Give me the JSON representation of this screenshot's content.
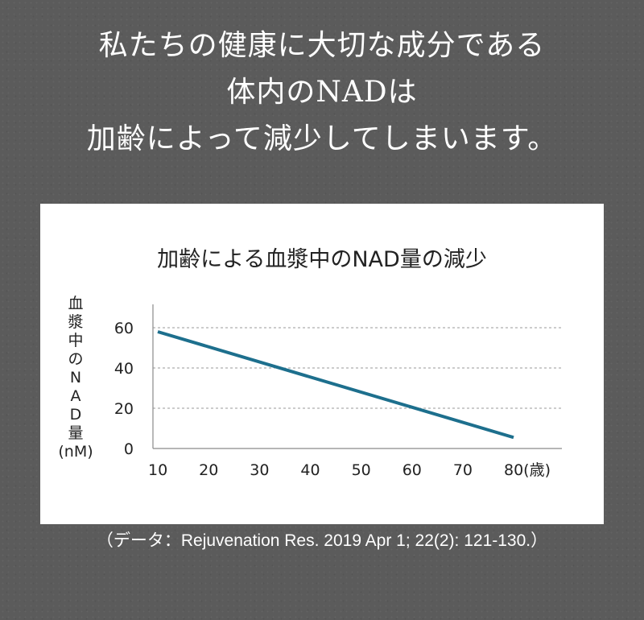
{
  "headline": {
    "lines": [
      "私たちの健康に大切な成分である",
      "体内のNADは",
      "加齢によって減少してしまいます。"
    ]
  },
  "colors": {
    "background": "#5b5b5b",
    "card": "#ffffff",
    "line": "#1d6f8d",
    "grid": "#9a9a9a",
    "text": "#222222"
  },
  "chart_data": {
    "type": "line",
    "title": "加齢による血漿中のNAD量の減少",
    "ylabel_chars": [
      "血",
      "漿",
      "中",
      "の",
      "N",
      "A",
      "D",
      "量",
      "(nM)"
    ],
    "xlabel": "",
    "x_ticks": [
      "10",
      "20",
      "30",
      "40",
      "50",
      "60",
      "70",
      "80(歳)"
    ],
    "y_ticks": [
      "0",
      "20",
      "40",
      "60"
    ],
    "xlim": [
      10,
      80
    ],
    "ylim": [
      0,
      70
    ],
    "grid": "horizontal-dashed",
    "series": [
      {
        "x": [
          10,
          80
        ],
        "values": [
          58,
          5.5
        ]
      }
    ]
  },
  "citation": "（データ：Rejuvenation Res. 2019 Apr 1; 22(2): 121-130.）"
}
